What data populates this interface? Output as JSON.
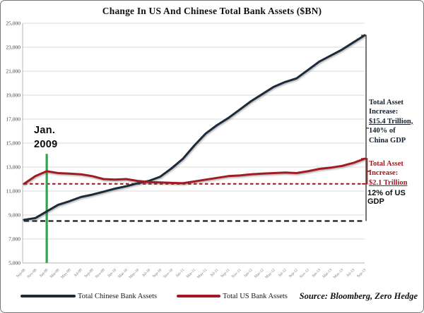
{
  "title": "Change In US And Chinese Total Bank Assets ($BN)",
  "chart_data": {
    "type": "line",
    "title": "Change In US And Chinese Total Bank Assets ($BN)",
    "xlabel": "",
    "ylabel": "",
    "ylim": [
      5000,
      25000
    ],
    "ytick_step": 2000,
    "yticks": [
      "25,000",
      "23,000",
      "21,000",
      "19,000",
      "17,000",
      "15,000",
      "13,000",
      "11,000",
      "9,000",
      "7,000",
      "5,000"
    ],
    "grid": "horizontal",
    "legend_position": "bottom",
    "x": [
      "Sep-08",
      "Nov-08",
      "Jan-09",
      "Mar-09",
      "May-09",
      "Jul-09",
      "Sep-09",
      "Nov-09",
      "Jan-10",
      "Mar-10",
      "May-10",
      "Jul-10",
      "Sep-10",
      "Nov-10",
      "Jan-11",
      "Mar-11",
      "May-11",
      "Jul-11",
      "Sep-11",
      "Nov-11",
      "Jan-12",
      "Mar-12",
      "May-12",
      "Jul-12",
      "Sep-12",
      "Nov-12",
      "Jan-13",
      "Mar-13",
      "May-13",
      "Jul-13",
      "Sep-13"
    ],
    "series": [
      {
        "name": "Total Chinese Bank Assets",
        "color": "#1c2b3a",
        "values": [
          8600,
          8750,
          9300,
          9850,
          10150,
          10500,
          10700,
          10950,
          11200,
          11400,
          11650,
          11850,
          12200,
          12900,
          13700,
          14800,
          15800,
          16500,
          17100,
          17800,
          18500,
          19100,
          19700,
          20100,
          20400,
          21100,
          21800,
          22300,
          22800,
          23400,
          24000
        ]
      },
      {
        "name": "Total US Bank Assets",
        "color": "#a11a22",
        "values": [
          11600,
          12250,
          12650,
          12500,
          12450,
          12400,
          12250,
          12000,
          11950,
          12000,
          11850,
          11750,
          11720,
          11680,
          11650,
          11800,
          11950,
          12100,
          12250,
          12300,
          12400,
          12450,
          12500,
          12550,
          12500,
          12650,
          12850,
          12950,
          13100,
          13350,
          13700
        ]
      }
    ],
    "reference_lines": [
      {
        "name": "us-baseline",
        "value": 11600,
        "style": "dashed",
        "color": "#a11a22"
      },
      {
        "name": "china-baseline",
        "value": 8500,
        "style": "dashed",
        "color": "#1a1a1a"
      }
    ],
    "event_line": {
      "label": "Jan. 2009",
      "x": "Jan-09",
      "color": "#2aa84a",
      "y_top_value": 14100
    }
  },
  "annotations": {
    "jan2009": {
      "lines": [
        "Jan.",
        "2009"
      ]
    },
    "china_increase": {
      "lines": [
        "Total Asset",
        "Increase:",
        "$15.4 Trillion,",
        "140% of",
        "China GDP"
      ]
    },
    "us_increase": {
      "lines": [
        "Total Asset",
        "Increase:",
        "$2.1 Trillion"
      ]
    },
    "us_gdp": "12% of US GDP"
  },
  "legend": {
    "items": [
      {
        "label": "Total Chinese Bank Assets",
        "color": "#1c2b3a"
      },
      {
        "label": "Total US Bank Assets",
        "color": "#a11a22"
      }
    ],
    "source": "Source: Bloomberg, Zero Hedge"
  },
  "colors": {
    "grid": "#d9d9d9",
    "axis": "#b5b5b5",
    "ytick_text": "#3d3d3d",
    "xtick_text": "#777777",
    "green_event": "#2aa84a"
  }
}
